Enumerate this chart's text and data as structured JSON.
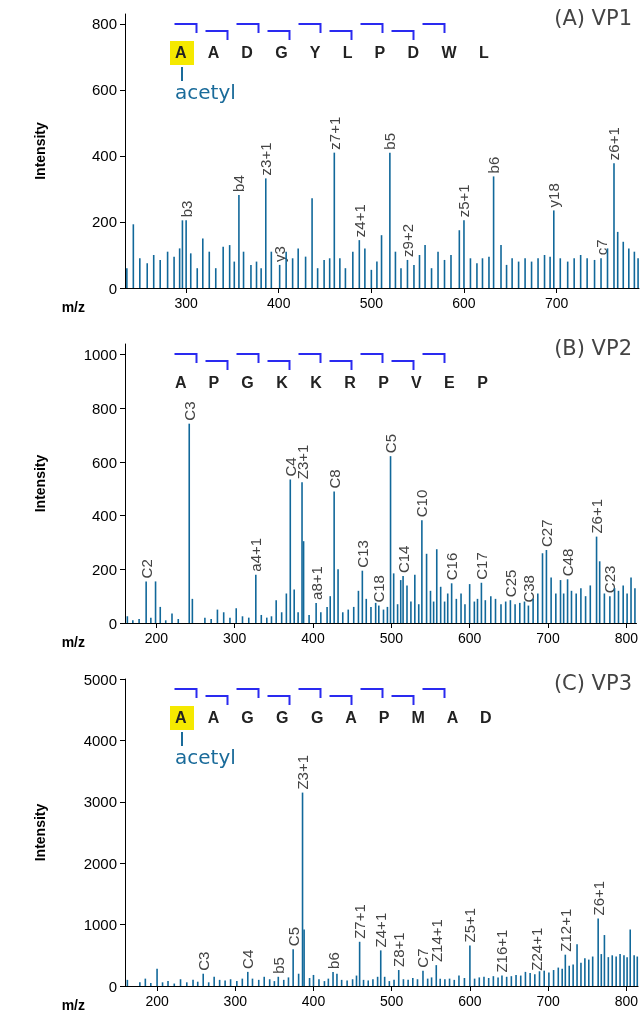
{
  "chart_data": [
    {
      "type": "bar",
      "title": "(A) VP1",
      "xlabel": "m/z",
      "ylabel": "Intensity",
      "color": "#11689a",
      "xlim": [
        234,
        789
      ],
      "xticks": [
        300,
        400,
        500,
        600,
        700
      ],
      "ylim": [
        0,
        830
      ],
      "yticks": [
        0,
        200,
        400,
        600,
        800
      ],
      "x": [
        236,
        243,
        250,
        258,
        265,
        272,
        280,
        287,
        293,
        296,
        300,
        305,
        312,
        318,
        325,
        332,
        340,
        347,
        352,
        357,
        362,
        370,
        376,
        381,
        386,
        392,
        401,
        408,
        415,
        421,
        429,
        436,
        442,
        449,
        455,
        460,
        466,
        472,
        480,
        487,
        493,
        500,
        506,
        511,
        520,
        526,
        532,
        539,
        546,
        552,
        558,
        565,
        572,
        579,
        586,
        595,
        600,
        607,
        614,
        620,
        627,
        632,
        640,
        646,
        652,
        659,
        666,
        673,
        680,
        687,
        693,
        697,
        704,
        712,
        719,
        726,
        733,
        741,
        748,
        755,
        762,
        766,
        772,
        778,
        784,
        788
      ],
      "values": [
        60,
        193,
        90,
        75,
        100,
        85,
        110,
        95,
        120,
        205,
        205,
        105,
        60,
        150,
        110,
        60,
        125,
        130,
        80,
        282,
        110,
        70,
        80,
        60,
        332,
        110,
        70,
        110,
        90,
        120,
        95,
        272,
        60,
        85,
        90,
        410,
        90,
        60,
        110,
        145,
        120,
        55,
        80,
        160,
        410,
        110,
        60,
        85,
        70,
        100,
        130,
        60,
        110,
        85,
        100,
        175,
        205,
        90,
        75,
        90,
        95,
        338,
        130,
        70,
        90,
        80,
        90,
        80,
        90,
        100,
        95,
        235,
        90,
        80,
        90,
        100,
        90,
        85,
        90,
        120,
        378,
        170,
        140,
        120,
        110,
        90
      ],
      "annotations": [
        "A A D G Y L P D W L",
        "acetyl",
        {
          "text": "b3",
          "x": 300,
          "y": 205
        },
        {
          "text": "b4",
          "x": 357,
          "y": 282
        },
        {
          "text": "z3+1",
          "x": 386,
          "y": 332
        },
        {
          "text": "y3",
          "x": 401,
          "y": 70
        },
        {
          "text": "z7+1",
          "x": 460,
          "y": 410
        },
        {
          "text": "z4+1",
          "x": 487,
          "y": 145
        },
        {
          "text": "b5",
          "x": 520,
          "y": 410
        },
        {
          "text": "z9+2",
          "x": 539,
          "y": 85
        },
        {
          "text": "z5+1",
          "x": 600,
          "y": 205
        },
        {
          "text": "b6",
          "x": 632,
          "y": 338
        },
        {
          "text": "y18",
          "x": 697,
          "y": 235
        },
        {
          "text": "c7",
          "x": 748,
          "y": 90
        },
        {
          "text": "z6+1",
          "x": 762,
          "y": 378
        }
      ]
    },
    {
      "type": "bar",
      "title": "(B) VP2",
      "xlabel": "m/z",
      "ylabel": "Intensity",
      "color": "#11689a",
      "xlim": [
        160,
        813
      ],
      "xticks": [
        200,
        300,
        400,
        500,
        600,
        700,
        800
      ],
      "ylim": [
        0,
        1040
      ],
      "yticks": [
        0,
        200,
        400,
        600,
        800,
        1000
      ],
      "x": [
        163,
        170,
        178,
        187,
        193,
        199,
        205,
        212,
        220,
        228,
        236,
        242,
        246,
        255,
        262,
        270,
        278,
        286,
        294,
        302,
        310,
        318,
        327,
        334,
        341,
        347,
        353,
        360,
        366,
        371,
        376,
        381,
        386,
        388,
        395,
        404,
        410,
        418,
        422,
        427,
        432,
        438,
        445,
        452,
        458,
        463,
        468,
        474,
        480,
        484,
        490,
        495,
        499,
        503,
        508,
        512,
        515,
        520,
        525,
        530,
        535,
        539,
        545,
        550,
        554,
        558,
        563,
        568,
        572,
        577,
        583,
        589,
        594,
        600,
        606,
        610,
        615,
        620,
        627,
        633,
        640,
        646,
        652,
        658,
        664,
        670,
        675,
        681,
        687,
        693,
        698,
        704,
        710,
        716,
        720,
        725,
        730,
        736,
        742,
        748,
        754,
        762,
        766,
        772,
        779,
        785,
        790,
        796,
        801,
        806,
        811
      ],
      "values": [
        25,
        10,
        15,
        155,
        20,
        155,
        60,
        10,
        35,
        15,
        null,
        743,
        90,
        null,
        20,
        15,
        50,
        40,
        20,
        55,
        25,
        20,
        180,
        30,
        20,
        25,
        85,
        40,
        110,
        535,
        125,
        40,
        525,
        305,
        30,
        75,
        40,
        60,
        100,
        490,
        200,
        40,
        50,
        60,
        120,
        195,
        90,
        60,
        75,
        65,
        50,
        60,
        622,
        185,
        70,
        160,
        175,
        140,
        80,
        180,
        70,
        383,
        258,
        120,
        80,
        275,
        135,
        80,
        110,
        148,
        90,
        110,
        70,
        145,
        80,
        90,
        150,
        85,
        100,
        90,
        70,
        80,
        85,
        70,
        75,
        80,
        65,
        90,
        110,
        260,
        272,
        170,
        110,
        160,
        110,
        163,
        120,
        110,
        130,
        100,
        140,
        322,
        230,
        110,
        100,
        130,
        120,
        140,
        110,
        170,
        130
      ],
      "annotations": [
        "A P G K K R P V E P",
        {
          "text": "C2",
          "x": 187,
          "y": 155
        },
        {
          "text": "C3",
          "x": 242,
          "y": 743
        },
        {
          "text": "a4+1",
          "x": 327,
          "y": 180
        },
        {
          "text": "C4",
          "x": 371,
          "y": 535
        },
        {
          "text": "Z3+1",
          "x": 386,
          "y": 525
        },
        {
          "text": "a8+1",
          "x": 404,
          "y": 75
        },
        {
          "text": "C8",
          "x": 427,
          "y": 490
        },
        {
          "text": "C13",
          "x": 463,
          "y": 195
        },
        {
          "text": "C18",
          "x": 484,
          "y": 65
        },
        {
          "text": "C5",
          "x": 499,
          "y": 622
        },
        {
          "text": "C14",
          "x": 515,
          "y": 175
        },
        {
          "text": "C10",
          "x": 539,
          "y": 383
        },
        {
          "text": "C16",
          "x": 577,
          "y": 148
        },
        {
          "text": "C17",
          "x": 615,
          "y": 150
        },
        {
          "text": "C25",
          "x": 652,
          "y": 85
        },
        {
          "text": "C38",
          "x": 675,
          "y": 65
        },
        {
          "text": "C27",
          "x": 698,
          "y": 272
        },
        {
          "text": "C48",
          "x": 725,
          "y": 163
        },
        {
          "text": "Z6+1",
          "x": 762,
          "y": 322
        },
        {
          "text": "C23",
          "x": 779,
          "y": 100
        }
      ]
    },
    {
      "type": "bar",
      "title": "(C) VP3",
      "xlabel": "m/z",
      "ylabel": "Intensity",
      "color": "#11689a",
      "xlim": [
        159,
        815
      ],
      "xticks": [
        200,
        300,
        400,
        500,
        600,
        700,
        800
      ],
      "ylim": [
        0,
        5000
      ],
      "yticks": [
        0,
        1000,
        2000,
        3000,
        4000,
        5000
      ],
      "x": [
        162,
        170,
        178,
        185,
        192,
        200,
        207,
        214,
        222,
        230,
        238,
        246,
        252,
        259,
        266,
        273,
        280,
        287,
        294,
        302,
        309,
        316,
        322,
        330,
        337,
        344,
        350,
        355,
        362,
        368,
        374,
        381,
        386,
        388,
        395,
        400,
        407,
        414,
        419,
        425,
        430,
        436,
        443,
        450,
        455,
        459,
        464,
        470,
        476,
        482,
        486,
        491,
        497,
        503,
        509,
        515,
        521,
        527,
        533,
        540,
        546,
        551,
        557,
        562,
        568,
        574,
        580,
        586,
        593,
        600,
        606,
        612,
        618,
        624,
        630,
        636,
        641,
        647,
        653,
        659,
        665,
        671,
        677,
        683,
        689,
        695,
        701,
        707,
        713,
        718,
        722,
        727,
        732,
        737,
        742,
        747,
        752,
        757,
        764,
        768,
        772,
        777,
        782,
        787,
        792,
        797,
        801,
        805,
        810,
        814
      ],
      "values": [
        100,
        null,
        60,
        120,
        50,
        280,
        60,
        80,
        40,
        110,
        60,
        100,
        70,
        200,
        60,
        150,
        100,
        90,
        110,
        80,
        120,
        230,
        120,
        100,
        150,
        110,
        80,
        150,
        100,
        140,
        600,
        200,
        3150,
        920,
        130,
        180,
        110,
        80,
        120,
        230,
        200,
        100,
        90,
        110,
        170,
        720,
        100,
        90,
        110,
        150,
        580,
        150,
        80,
        100,
        260,
        110,
        100,
        130,
        110,
        250,
        120,
        140,
        340,
        120,
        110,
        120,
        100,
        170,
        130,
        660,
        120,
        140,
        150,
        130,
        160,
        140,
        170,
        150,
        160,
        180,
        170,
        230,
        210,
        190,
        240,
        250,
        220,
        260,
        300,
        280,
        510,
        330,
        350,
        680,
        380,
        450,
        430,
        480,
        1100,
        520,
        830,
        470,
        500,
        480,
        520,
        500,
        470,
        920,
        500,
        480
      ],
      "annotations": [
        "A A G G G A P M A D",
        "acetyl",
        {
          "text": "C3",
          "x": 259,
          "y": 200
        },
        {
          "text": "C4",
          "x": 316,
          "y": 230
        },
        {
          "text": "b5",
          "x": 355,
          "y": 150
        },
        {
          "text": "C5",
          "x": 374,
          "y": 600
        },
        {
          "text": "Z3+1",
          "x": 386,
          "y": 3150
        },
        {
          "text": "b6",
          "x": 425,
          "y": 230
        },
        {
          "text": "Z7+1",
          "x": 459,
          "y": 720
        },
        {
          "text": "Z4+1",
          "x": 486,
          "y": 580
        },
        {
          "text": "Z8+1",
          "x": 509,
          "y": 260
        },
        {
          "text": "C7",
          "x": 540,
          "y": 250
        },
        {
          "text": "Z14+1",
          "x": 557,
          "y": 340
        },
        {
          "text": "Z5+1",
          "x": 600,
          "y": 660
        },
        {
          "text": "Z16+1",
          "x": 641,
          "y": 170
        },
        {
          "text": "Z24+1",
          "x": 685,
          "y": 200
        },
        {
          "text": "Z12+1",
          "x": 722,
          "y": 510
        },
        {
          "text": "Z6+1",
          "x": 764,
          "y": 1100
        }
      ]
    }
  ]
}
